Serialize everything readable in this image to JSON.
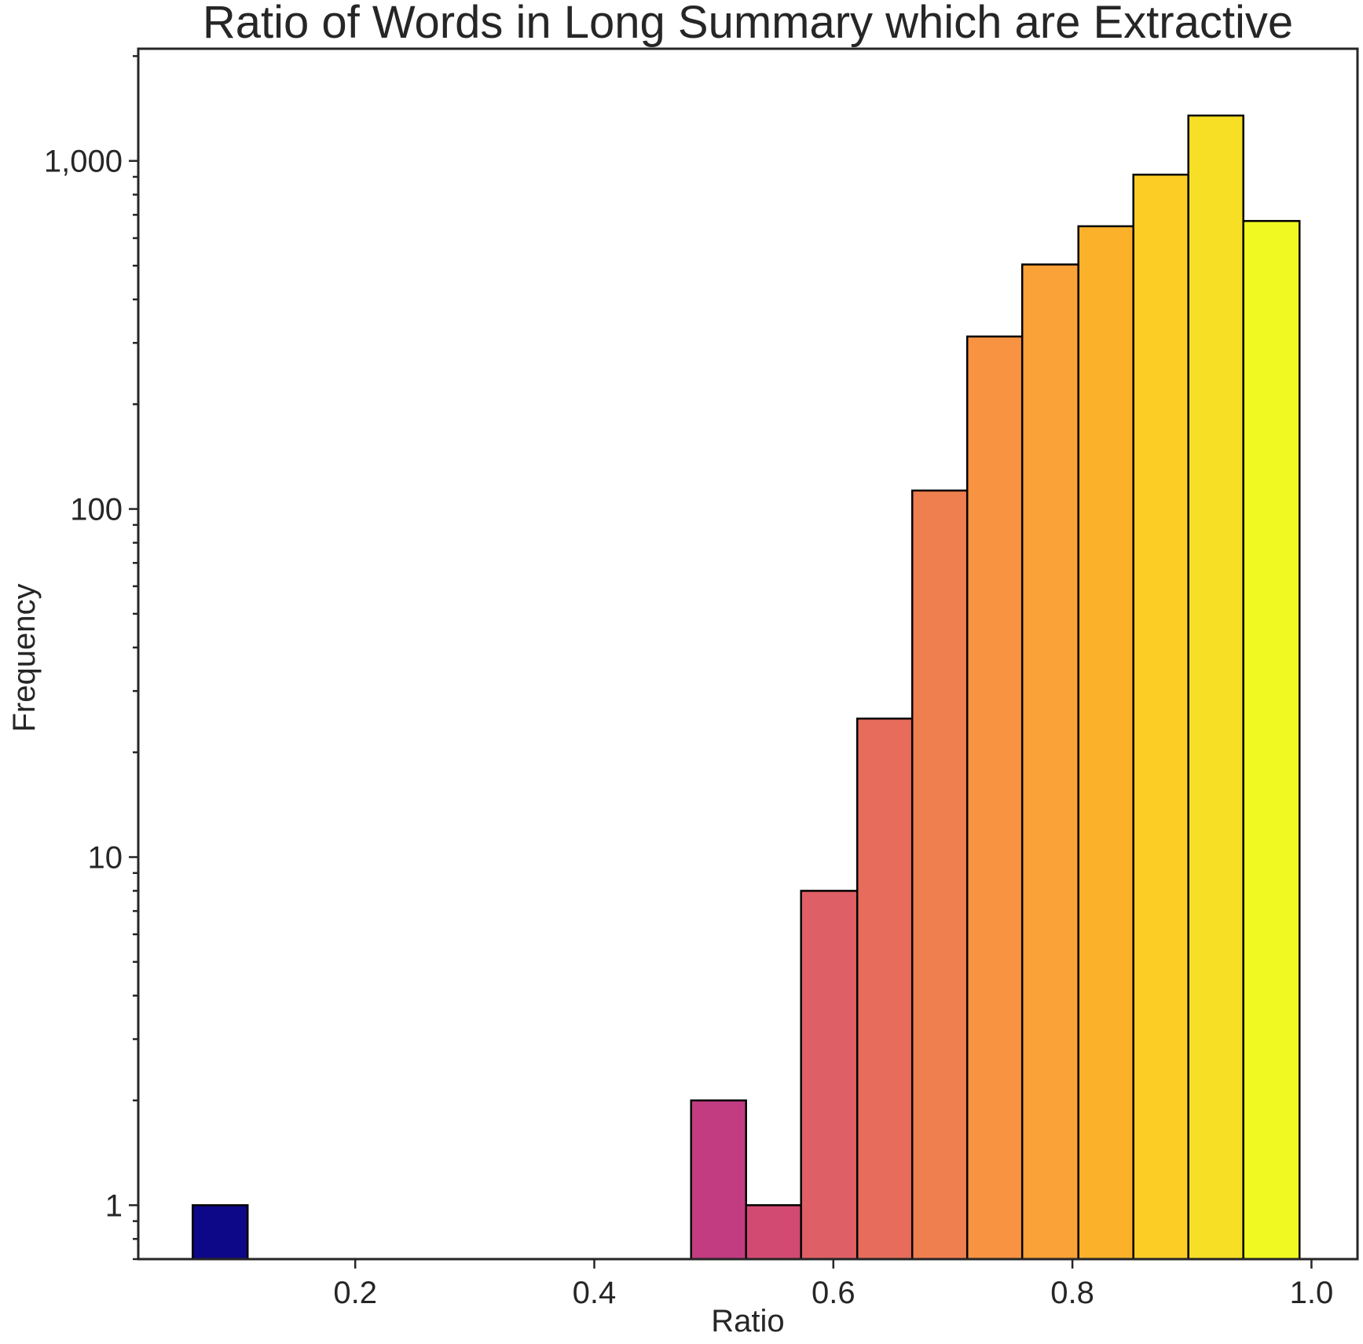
{
  "chart_data": {
    "type": "bar",
    "title": "Ratio of Words in Long Summary which are Extractive",
    "xlabel": "Ratio",
    "ylabel": "Frequency",
    "y_scale": "log",
    "xlim": [
      0.0185,
      1.0385
    ],
    "ylim": [
      0.7,
      2100
    ],
    "grid": false,
    "x_ticks": [
      {
        "value": 0.2,
        "label": "0.2"
      },
      {
        "value": 0.4,
        "label": "0.4"
      },
      {
        "value": 0.6,
        "label": "0.6"
      },
      {
        "value": 0.8,
        "label": "0.8"
      },
      {
        "value": 1.0,
        "label": "1.0"
      }
    ],
    "y_ticks": [
      {
        "value": 1,
        "label": "1"
      },
      {
        "value": 10,
        "label": "10"
      },
      {
        "value": 100,
        "label": "100"
      },
      {
        "value": 1000,
        "label": "1,000"
      }
    ],
    "bins": [
      {
        "x0": 0.064,
        "x1": 0.11,
        "count": 1,
        "color": "#0d0887"
      },
      {
        "x0": 0.481,
        "x1": 0.527,
        "count": 2,
        "color": "#c23c81"
      },
      {
        "x0": 0.527,
        "x1": 0.573,
        "count": 1,
        "color": "#d24a72"
      },
      {
        "x0": 0.573,
        "x1": 0.62,
        "count": 8,
        "color": "#de5f65"
      },
      {
        "x0": 0.62,
        "x1": 0.666,
        "count": 25,
        "color": "#e76c5b"
      },
      {
        "x0": 0.666,
        "x1": 0.712,
        "count": 113,
        "color": "#f07f4f"
      },
      {
        "x0": 0.712,
        "x1": 0.758,
        "count": 313,
        "color": "#f89441"
      },
      {
        "x0": 0.758,
        "x1": 0.805,
        "count": 504,
        "color": "#faa137"
      },
      {
        "x0": 0.805,
        "x1": 0.851,
        "count": 649,
        "color": "#fcb12a"
      },
      {
        "x0": 0.851,
        "x1": 0.897,
        "count": 913,
        "color": "#fccd25"
      },
      {
        "x0": 0.897,
        "x1": 0.943,
        "count": 1350,
        "color": "#f6df24"
      },
      {
        "x0": 0.943,
        "x1": 0.99,
        "count": 672,
        "color": "#f0f921"
      }
    ]
  }
}
